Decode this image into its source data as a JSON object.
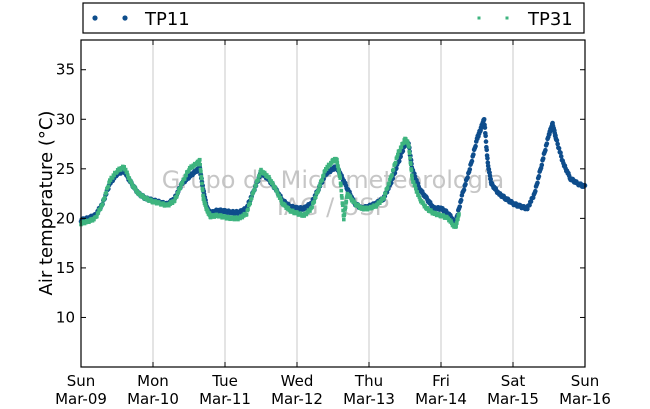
{
  "chart_data": {
    "type": "scatter",
    "ylabel": "Air temperature (°C)",
    "xlabel": "",
    "ylim": [
      5,
      38
    ],
    "xlim": [
      0,
      7
    ],
    "grid": "vertical at day boundaries",
    "legend_placement": "top (above plot)",
    "watermark": [
      "Grupo de Micrometeorologia",
      "IAG / USP"
    ],
    "yticks": [
      10,
      15,
      20,
      25,
      30,
      35
    ],
    "xticks": [
      {
        "x": 0,
        "day": "Sun",
        "date": "Mar-09"
      },
      {
        "x": 1,
        "day": "Mon",
        "date": "Mar-10"
      },
      {
        "x": 2,
        "day": "Tue",
        "date": "Mar-11"
      },
      {
        "x": 3,
        "day": "Wed",
        "date": "Mar-12"
      },
      {
        "x": 4,
        "day": "Thu",
        "date": "Mar-13"
      },
      {
        "x": 5,
        "day": "Fri",
        "date": "Mar-14"
      },
      {
        "x": 6,
        "day": "Sat",
        "date": "Mar-15"
      },
      {
        "x": 7,
        "day": "Sun",
        "date": "Mar-16"
      }
    ],
    "series": [
      {
        "name": "TP11",
        "color": "#0e4d8c",
        "marker": "circle",
        "points": [
          [
            0.0,
            19.8
          ],
          [
            0.1,
            20.0
          ],
          [
            0.2,
            20.3
          ],
          [
            0.3,
            21.5
          ],
          [
            0.4,
            23.5
          ],
          [
            0.5,
            24.5
          ],
          [
            0.6,
            24.8
          ],
          [
            0.7,
            23.5
          ],
          [
            0.8,
            22.5
          ],
          [
            0.9,
            22.0
          ],
          [
            1.0,
            21.8
          ],
          [
            1.1,
            21.6
          ],
          [
            1.2,
            21.4
          ],
          [
            1.3,
            22.0
          ],
          [
            1.4,
            23.5
          ],
          [
            1.5,
            24.2
          ],
          [
            1.6,
            24.8
          ],
          [
            1.65,
            25.0
          ],
          [
            1.7,
            22.8
          ],
          [
            1.75,
            21.0
          ],
          [
            1.8,
            20.5
          ],
          [
            1.9,
            20.8
          ],
          [
            2.0,
            20.7
          ],
          [
            2.1,
            20.6
          ],
          [
            2.2,
            20.6
          ],
          [
            2.3,
            21.0
          ],
          [
            2.4,
            22.8
          ],
          [
            2.5,
            24.6
          ],
          [
            2.6,
            24.0
          ],
          [
            2.7,
            23.0
          ],
          [
            2.8,
            21.8
          ],
          [
            2.9,
            21.2
          ],
          [
            3.0,
            21.0
          ],
          [
            3.1,
            21.0
          ],
          [
            3.2,
            21.5
          ],
          [
            3.3,
            23.0
          ],
          [
            3.4,
            24.5
          ],
          [
            3.5,
            25.0
          ],
          [
            3.55,
            25.2
          ],
          [
            3.6,
            24.5
          ],
          [
            3.7,
            23.0
          ],
          [
            3.8,
            21.5
          ],
          [
            3.9,
            21.0
          ],
          [
            4.0,
            21.2
          ],
          [
            4.1,
            21.5
          ],
          [
            4.2,
            22.0
          ],
          [
            4.3,
            23.5
          ],
          [
            4.4,
            25.5
          ],
          [
            4.5,
            27.5
          ],
          [
            4.55,
            27.5
          ],
          [
            4.6,
            25.0
          ],
          [
            4.7,
            23.0
          ],
          [
            4.8,
            22.0
          ],
          [
            4.9,
            21.0
          ],
          [
            5.0,
            21.0
          ],
          [
            5.1,
            20.5
          ],
          [
            5.2,
            19.5
          ],
          [
            5.3,
            22.5
          ],
          [
            5.4,
            25.0
          ],
          [
            5.5,
            28.0
          ],
          [
            5.55,
            29.0
          ],
          [
            5.6,
            30.0
          ],
          [
            5.65,
            25.5
          ],
          [
            5.7,
            23.5
          ],
          [
            5.8,
            22.5
          ],
          [
            5.9,
            22.0
          ],
          [
            6.0,
            21.5
          ],
          [
            6.1,
            21.2
          ],
          [
            6.2,
            21.0
          ],
          [
            6.3,
            22.5
          ],
          [
            6.4,
            25.5
          ],
          [
            6.5,
            28.5
          ],
          [
            6.55,
            29.5
          ],
          [
            6.6,
            28.0
          ],
          [
            6.7,
            25.5
          ],
          [
            6.8,
            24.0
          ],
          [
            6.9,
            23.5
          ],
          [
            7.0,
            23.2
          ]
        ]
      },
      {
        "name": "TP31",
        "color": "#3eb47f",
        "marker": "square",
        "points": [
          [
            0.0,
            19.5
          ],
          [
            0.1,
            19.7
          ],
          [
            0.2,
            20.0
          ],
          [
            0.3,
            21.5
          ],
          [
            0.4,
            23.8
          ],
          [
            0.5,
            24.8
          ],
          [
            0.6,
            25.2
          ],
          [
            0.7,
            23.5
          ],
          [
            0.8,
            22.5
          ],
          [
            0.9,
            22.0
          ],
          [
            1.0,
            21.7
          ],
          [
            1.1,
            21.5
          ],
          [
            1.2,
            21.3
          ],
          [
            1.3,
            21.8
          ],
          [
            1.4,
            23.5
          ],
          [
            1.5,
            25.0
          ],
          [
            1.6,
            25.5
          ],
          [
            1.65,
            25.8
          ],
          [
            1.7,
            22.0
          ],
          [
            1.75,
            20.8
          ],
          [
            1.8,
            20.2
          ],
          [
            1.9,
            20.3
          ],
          [
            2.0,
            20.1
          ],
          [
            2.1,
            20.0
          ],
          [
            2.2,
            20.0
          ],
          [
            2.3,
            20.5
          ],
          [
            2.4,
            22.8
          ],
          [
            2.5,
            24.8
          ],
          [
            2.6,
            24.2
          ],
          [
            2.7,
            23.0
          ],
          [
            2.8,
            21.5
          ],
          [
            2.9,
            20.8
          ],
          [
            3.0,
            20.5
          ],
          [
            3.1,
            20.3
          ],
          [
            3.2,
            21.0
          ],
          [
            3.3,
            23.0
          ],
          [
            3.4,
            25.0
          ],
          [
            3.5,
            25.8
          ],
          [
            3.55,
            26.0
          ],
          [
            3.6,
            24.0
          ],
          [
            3.65,
            20.0
          ],
          [
            3.7,
            22.5
          ],
          [
            3.8,
            21.5
          ],
          [
            3.9,
            21.0
          ],
          [
            4.0,
            21.0
          ],
          [
            4.1,
            21.3
          ],
          [
            4.2,
            22.0
          ],
          [
            4.3,
            24.0
          ],
          [
            4.4,
            26.5
          ],
          [
            4.5,
            28.0
          ],
          [
            4.55,
            27.5
          ],
          [
            4.6,
            24.0
          ],
          [
            4.7,
            22.0
          ],
          [
            4.8,
            21.0
          ],
          [
            4.9,
            20.5
          ],
          [
            5.0,
            20.3
          ],
          [
            5.1,
            20.0
          ],
          [
            5.2,
            19.0
          ],
          [
            5.25,
            20.5
          ]
        ]
      }
    ]
  }
}
